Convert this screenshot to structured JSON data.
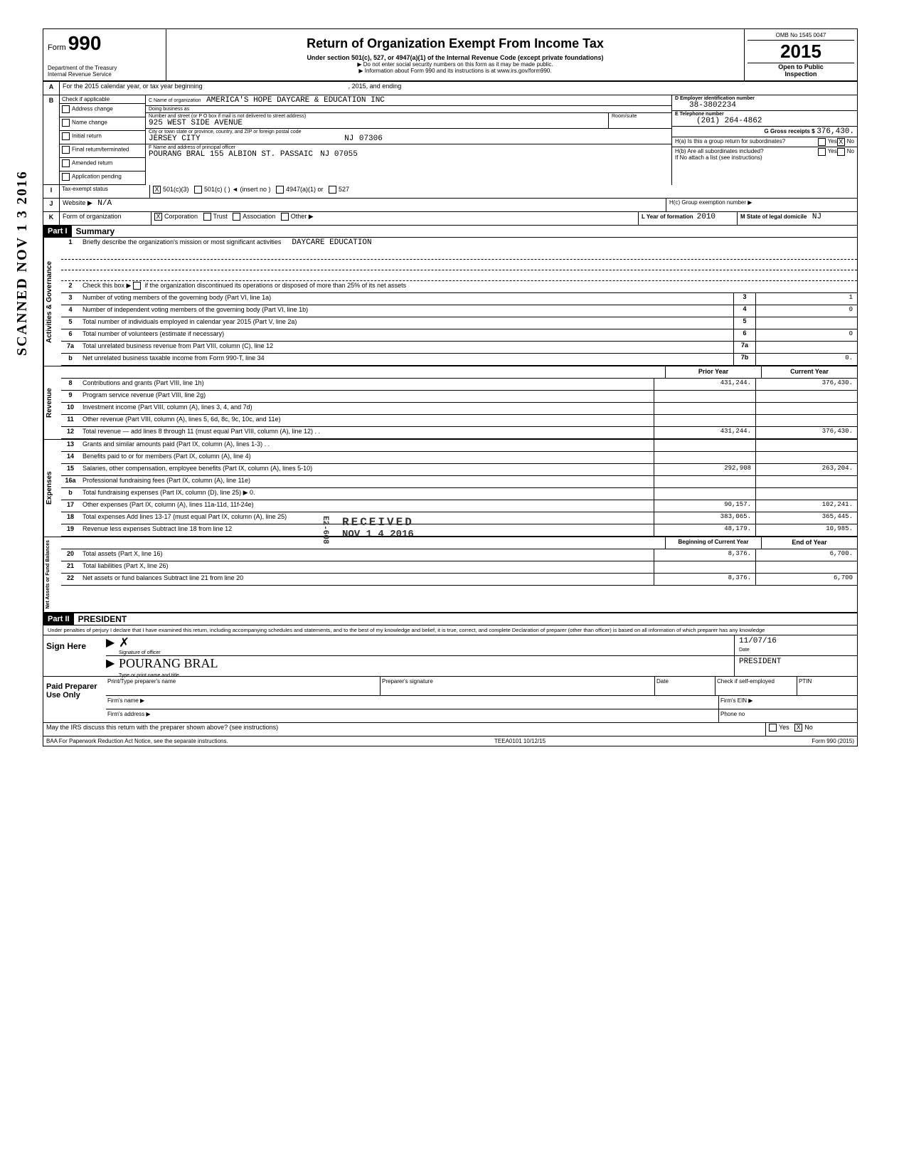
{
  "header": {
    "form_label": "Form",
    "form_number": "990",
    "dept": "Department of the Treasury",
    "irs": "Internal Revenue Service",
    "title": "Return of Organization Exempt From Income Tax",
    "subtitle": "Under section 501(c), 527, or 4947(a)(1) of the Internal Revenue Code (except private foundations)",
    "note1": "▶ Do not enter social security numbers on this form as it may be made public.",
    "note2": "▶ Information about Form 990 and its instructions is at www.irs.gov/form990.",
    "omb": "OMB No 1545 0047",
    "year": "2015",
    "open": "Open to Public",
    "inspection": "Inspection"
  },
  "rowA": {
    "label": "A",
    "text": "For the 2015 calendar year, or tax year beginning",
    "mid": ", 2015, and ending"
  },
  "rowB": {
    "label": "B",
    "check_label": "Check if applicable",
    "checks": [
      "Address change",
      "Name change",
      "Initial return",
      "Final return/terminated",
      "Amended return",
      "Application pending"
    ],
    "c_label": "C  Name of organization",
    "org_name": "AMERICA'S HOPE DAYCARE & EDUCATION INC",
    "dba_label": "Doing business as",
    "street_label": "Number and street (or P O box if mail is not delivered to street address)",
    "room_label": "Room/suite",
    "street": "925 WEST SIDE AVENUE",
    "city_label": "City or town state or province, country, and ZIP or foreign postal code",
    "city": "JERSEY CITY",
    "state": "NJ",
    "zip": "07306",
    "f_label": "F  Name and address of principal officer",
    "officer": "POURANG BRAL 155 ALBION ST. PASSAIC",
    "officer_state": "NJ 07055",
    "d_label": "D  Employer identification number",
    "ein": "38-3802234",
    "e_label": "E  Telephone number",
    "phone": "(201) 264-4862",
    "g_label": "G  Gross receipts $",
    "gross": "376,430.",
    "ha_label": "H(a) Is this a group return for subordinates?",
    "hb_label": "H(b) Are all subordinates included?",
    "hb_note": "If No attach a list (see instructions)",
    "yes": "Yes",
    "no": "No"
  },
  "rowI": {
    "label": "I",
    "text": "Tax-exempt status",
    "opt1": "501(c)(3)",
    "opt2": "501(c) (",
    "insert": ") ◄  (insert no )",
    "opt3": "4947(a)(1) or",
    "opt4": "527"
  },
  "rowJ": {
    "label": "J",
    "text": "Website ▶",
    "value": "N/A",
    "hc": "H(c) Group exemption number  ▶"
  },
  "rowK": {
    "label": "K",
    "text": "Form of organization",
    "corp": "Corporation",
    "trust": "Trust",
    "assoc": "Association",
    "other": "Other ▶",
    "l_label": "L Year of formation",
    "l_val": "2010",
    "m_label": "M State of legal domicile",
    "m_val": "NJ"
  },
  "part1": {
    "header": "Part I",
    "title": "Summary",
    "line1_label": "1",
    "line1": "Briefly describe the organization's mission or most significant activities",
    "line1_val": "DAYCARE EDUCATION",
    "line2_label": "2",
    "line2": "Check this box ▶         if the organization discontinued its operations or disposed of more than 25% of its net assets",
    "lines_gov": [
      {
        "n": "3",
        "d": "Number of voting members of the governing body (Part VI, line 1a)",
        "b": "3",
        "v": "1"
      },
      {
        "n": "4",
        "d": "Number of independent voting members of the governing body (Part VI, line 1b)",
        "b": "4",
        "v": "0"
      },
      {
        "n": "5",
        "d": "Total number of individuals employed in calendar year 2015 (Part V, line 2a)",
        "b": "5",
        "v": ""
      },
      {
        "n": "6",
        "d": "Total number of volunteers (estimate if necessary)",
        "b": "6",
        "v": "0"
      },
      {
        "n": "7a",
        "d": "Total unrelated business revenue from Part VIII, column (C), line 12",
        "b": "7a",
        "v": ""
      },
      {
        "n": "b",
        "d": "Net unrelated business taxable income from Form 990-T, line 34",
        "b": "7b",
        "v": "0."
      }
    ],
    "prior_year": "Prior Year",
    "current_year": "Current Year",
    "rev_lines": [
      {
        "n": "8",
        "d": "Contributions and grants (Part VIII, line 1h)",
        "p": "431,244.",
        "c": "376,430."
      },
      {
        "n": "9",
        "d": "Program service revenue (Part VIII, line 2g)",
        "p": "",
        "c": ""
      },
      {
        "n": "10",
        "d": "Investment income (Part VIII, column (A), lines 3, 4, and 7d)",
        "p": "",
        "c": ""
      },
      {
        "n": "11",
        "d": "Other revenue (Part VIII, column (A), lines 5, 6d, 8c, 9c, 10c, and 11e)",
        "p": "",
        "c": ""
      },
      {
        "n": "12",
        "d": "Total revenue — add lines 8 through 11 (must equal Part VIII, column (A), line 12)  .  .",
        "p": "431,244.",
        "c": "376,430."
      }
    ],
    "exp_lines": [
      {
        "n": "13",
        "d": "Grants and similar amounts paid (Part IX, column (A), lines 1-3)  .  .",
        "p": "",
        "c": ""
      },
      {
        "n": "14",
        "d": "Benefits paid to or for members (Part IX, column (A), line 4)",
        "p": "",
        "c": ""
      },
      {
        "n": "15",
        "d": "Salaries, other compensation, employee benefits (Part IX, column (A), lines 5-10)",
        "p": "292,908",
        "c": "263,204."
      },
      {
        "n": "16a",
        "d": "Professional fundraising fees (Part IX, column (A), line 11e)",
        "p": "",
        "c": ""
      },
      {
        "n": "b",
        "d": "Total fundraising expenses (Part IX, column (D), line 25) ▶                                       0.",
        "p": "",
        "c": ""
      },
      {
        "n": "17",
        "d": "Other expenses (Part IX, column (A), lines 11a-11d, 11f-24e)",
        "p": "90,157.",
        "c": "102,241."
      },
      {
        "n": "18",
        "d": "Total expenses Add lines 13-17 (must equal Part IX, column (A), line 25)",
        "p": "383,065.",
        "c": "365,445."
      },
      {
        "n": "19",
        "d": "Revenue less expenses Subtract line 18 from line 12",
        "p": "48,179.",
        "c": "10,985."
      }
    ],
    "boy": "Beginning of Current Year",
    "eoy": "End of Year",
    "net_lines": [
      {
        "n": "20",
        "d": "Total assets (Part X, line 16)",
        "p": "8,376.",
        "c": "6,700."
      },
      {
        "n": "21",
        "d": "Total liabilities (Part X, line 26)",
        "p": "",
        "c": ""
      },
      {
        "n": "22",
        "d": "Net assets or fund balances Subtract line 21 from line 20",
        "p": "8,376.",
        "c": "6,700"
      }
    ],
    "side_gov": "Activities & Governance",
    "side_rev": "Revenue",
    "side_exp": "Expenses",
    "side_net": "Net Assets or Fund Balances"
  },
  "part2": {
    "header": "Part II",
    "title": "PRESIDENT",
    "perjury": "Under penalties of perjury I declare that I have examined this return, including accompanying schedules and statements, and to the best of my knowledge and belief, it is true, correct, and complete Declaration of preparer (other than officer) is based on all information of which preparer has any knowledge",
    "sign_here": "Sign Here",
    "sig_officer": "Signature of officer",
    "date_label": "Date",
    "date": "11/07/16",
    "name_label": "Type or print name and title",
    "name": "POURANG BRAL",
    "paid": "Paid Preparer Use Only",
    "prep_name": "Print/Type preparer's name",
    "prep_sig": "Preparer's signature",
    "prep_date": "Date",
    "check_if": "Check        if self-employed",
    "ptin": "PTIN",
    "firm_name": "Firm's name    ▶",
    "firm_addr": "Firm's address ▶",
    "firm_ein": "Firm's EIN ▶",
    "phone": "Phone no",
    "discuss": "May the IRS discuss this return with the preparer shown above? (see instructions)",
    "yes": "Yes",
    "no": "No"
  },
  "footer": {
    "baa": "BAA  For Paperwork Reduction Act Notice, see the separate instructions.",
    "code": "TEEA0101  10/12/15",
    "form": "Form 990 (2015)"
  },
  "stamps": {
    "scanned": "SCANNED NOV 1 3 2016",
    "received": "RECEIVED",
    "recv_date": "NOV 1 4 2016",
    "recv_code": "E2-608"
  }
}
